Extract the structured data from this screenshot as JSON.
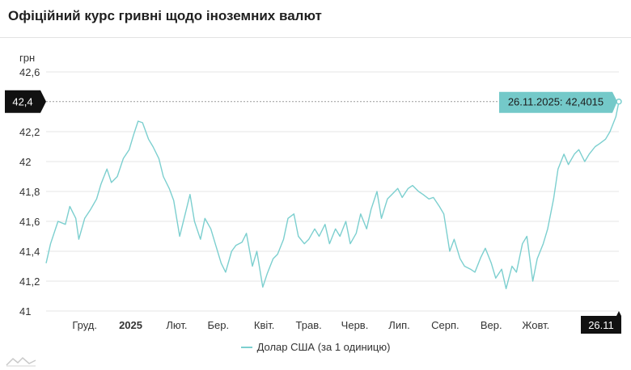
{
  "page": {
    "title": "Офіційний курс гривні щодо іноземних валют"
  },
  "colors": {
    "series": "#7ccfcf",
    "tooltip_bg": "#74c9c9",
    "axis_badge_bg": "#111111",
    "grid": "#e6e6e6"
  },
  "chart_data": {
    "type": "line",
    "title": "Офіційний курс гривні щодо іноземних валют",
    "ylabel": "грн",
    "xlabel": "",
    "ylim": [
      41,
      42.6
    ],
    "yticks": [
      "42,6",
      "42,2",
      "42",
      "41,8",
      "41,6",
      "41,4",
      "41,2",
      "41"
    ],
    "ytick_values": [
      42.6,
      42.2,
      42.0,
      41.8,
      41.6,
      41.4,
      41.2,
      41.0
    ],
    "xlim": [
      "2024-11-05",
      "2025-11-26"
    ],
    "xticks": [
      {
        "date": "2024-12-01",
        "label": "Груд.",
        "bold": false
      },
      {
        "date": "2025-01-01",
        "label": "2025",
        "bold": true
      },
      {
        "date": "2025-02-01",
        "label": "Лют.",
        "bold": false
      },
      {
        "date": "2025-03-01",
        "label": "Бер.",
        "bold": false
      },
      {
        "date": "2025-04-01",
        "label": "Квіт.",
        "bold": false
      },
      {
        "date": "2025-05-01",
        "label": "Трав.",
        "bold": false
      },
      {
        "date": "2025-06-01",
        "label": "Черв.",
        "bold": false
      },
      {
        "date": "2025-07-01",
        "label": "Лип.",
        "bold": false
      },
      {
        "date": "2025-08-01",
        "label": "Серп.",
        "bold": false
      },
      {
        "date": "2025-09-01",
        "label": "Вер.",
        "bold": false
      },
      {
        "date": "2025-10-01",
        "label": "Жовт.",
        "bold": false
      }
    ],
    "grid": true,
    "legend": "bottom-center",
    "series": [
      {
        "name": "Долар США (за 1 одиницю)",
        "x": [
          "2024-11-05",
          "2024-11-08",
          "2024-11-13",
          "2024-11-18",
          "2024-11-21",
          "2024-11-25",
          "2024-11-27",
          "2024-12-01",
          "2024-12-05",
          "2024-12-09",
          "2024-12-12",
          "2024-12-16",
          "2024-12-19",
          "2024-12-23",
          "2024-12-27",
          "2024-12-31",
          "2025-01-03",
          "2025-01-06",
          "2025-01-09",
          "2025-01-13",
          "2025-01-16",
          "2025-01-20",
          "2025-01-23",
          "2025-01-27",
          "2025-01-30",
          "2025-02-03",
          "2025-02-06",
          "2025-02-10",
          "2025-02-13",
          "2025-02-17",
          "2025-02-20",
          "2025-02-24",
          "2025-02-27",
          "2025-03-03",
          "2025-03-06",
          "2025-03-10",
          "2025-03-13",
          "2025-03-17",
          "2025-03-20",
          "2025-03-24",
          "2025-03-27",
          "2025-03-31",
          "2025-04-03",
          "2025-04-07",
          "2025-04-10",
          "2025-04-14",
          "2025-04-17",
          "2025-04-21",
          "2025-04-24",
          "2025-04-28",
          "2025-05-01",
          "2025-05-05",
          "2025-05-08",
          "2025-05-12",
          "2025-05-15",
          "2025-05-19",
          "2025-05-22",
          "2025-05-26",
          "2025-05-29",
          "2025-06-02",
          "2025-06-05",
          "2025-06-09",
          "2025-06-12",
          "2025-06-16",
          "2025-06-19",
          "2025-06-23",
          "2025-06-26",
          "2025-06-30",
          "2025-07-03",
          "2025-07-07",
          "2025-07-10",
          "2025-07-14",
          "2025-07-17",
          "2025-07-21",
          "2025-07-24",
          "2025-07-28",
          "2025-07-31",
          "2025-08-04",
          "2025-08-07",
          "2025-08-11",
          "2025-08-14",
          "2025-08-18",
          "2025-08-21",
          "2025-08-25",
          "2025-08-28",
          "2025-09-01",
          "2025-09-04",
          "2025-09-08",
          "2025-09-11",
          "2025-09-15",
          "2025-09-18",
          "2025-09-22",
          "2025-09-25",
          "2025-09-29",
          "2025-10-02",
          "2025-10-06",
          "2025-10-09",
          "2025-10-13",
          "2025-10-16",
          "2025-10-20",
          "2025-10-23",
          "2025-10-27",
          "2025-10-30",
          "2025-11-03",
          "2025-11-06",
          "2025-11-10",
          "2025-11-13",
          "2025-11-17",
          "2025-11-20",
          "2025-11-24",
          "2025-11-26"
        ],
        "values": [
          41.32,
          41.45,
          41.6,
          41.58,
          41.7,
          41.62,
          41.48,
          41.62,
          41.68,
          41.75,
          41.85,
          41.95,
          41.86,
          41.9,
          42.02,
          42.08,
          42.18,
          42.27,
          42.26,
          42.15,
          42.1,
          42.02,
          41.9,
          41.82,
          41.74,
          41.5,
          41.62,
          41.78,
          41.6,
          41.48,
          41.62,
          41.55,
          41.45,
          41.32,
          41.26,
          41.4,
          41.44,
          41.46,
          41.52,
          41.3,
          41.4,
          41.16,
          41.25,
          41.35,
          41.38,
          41.48,
          41.62,
          41.65,
          41.5,
          41.45,
          41.48,
          41.55,
          41.5,
          41.58,
          41.45,
          41.55,
          41.5,
          41.6,
          41.45,
          41.52,
          41.65,
          41.55,
          41.68,
          41.8,
          41.62,
          41.75,
          41.78,
          41.82,
          41.76,
          41.82,
          41.84,
          41.8,
          41.78,
          41.75,
          41.76,
          41.7,
          41.65,
          41.4,
          41.48,
          41.35,
          41.3,
          41.28,
          41.26,
          41.36,
          41.42,
          41.32,
          41.22,
          41.28,
          41.15,
          41.3,
          41.26,
          41.45,
          41.5,
          41.2,
          41.35,
          41.45,
          41.55,
          41.75,
          41.95,
          42.05,
          41.98,
          42.05,
          42.08,
          42.0,
          42.05,
          42.1,
          42.12,
          42.15,
          42.2,
          42.3,
          42.4
        ]
      }
    ],
    "annotation": {
      "date": "2025-11-26",
      "value": 42.4015,
      "tooltip_text": "26.11.2025: 42,4015",
      "y_badge_text": "42,4",
      "x_badge_text": "26.11"
    }
  },
  "legend": {
    "label": "Долар США (за 1 одиницю)"
  }
}
